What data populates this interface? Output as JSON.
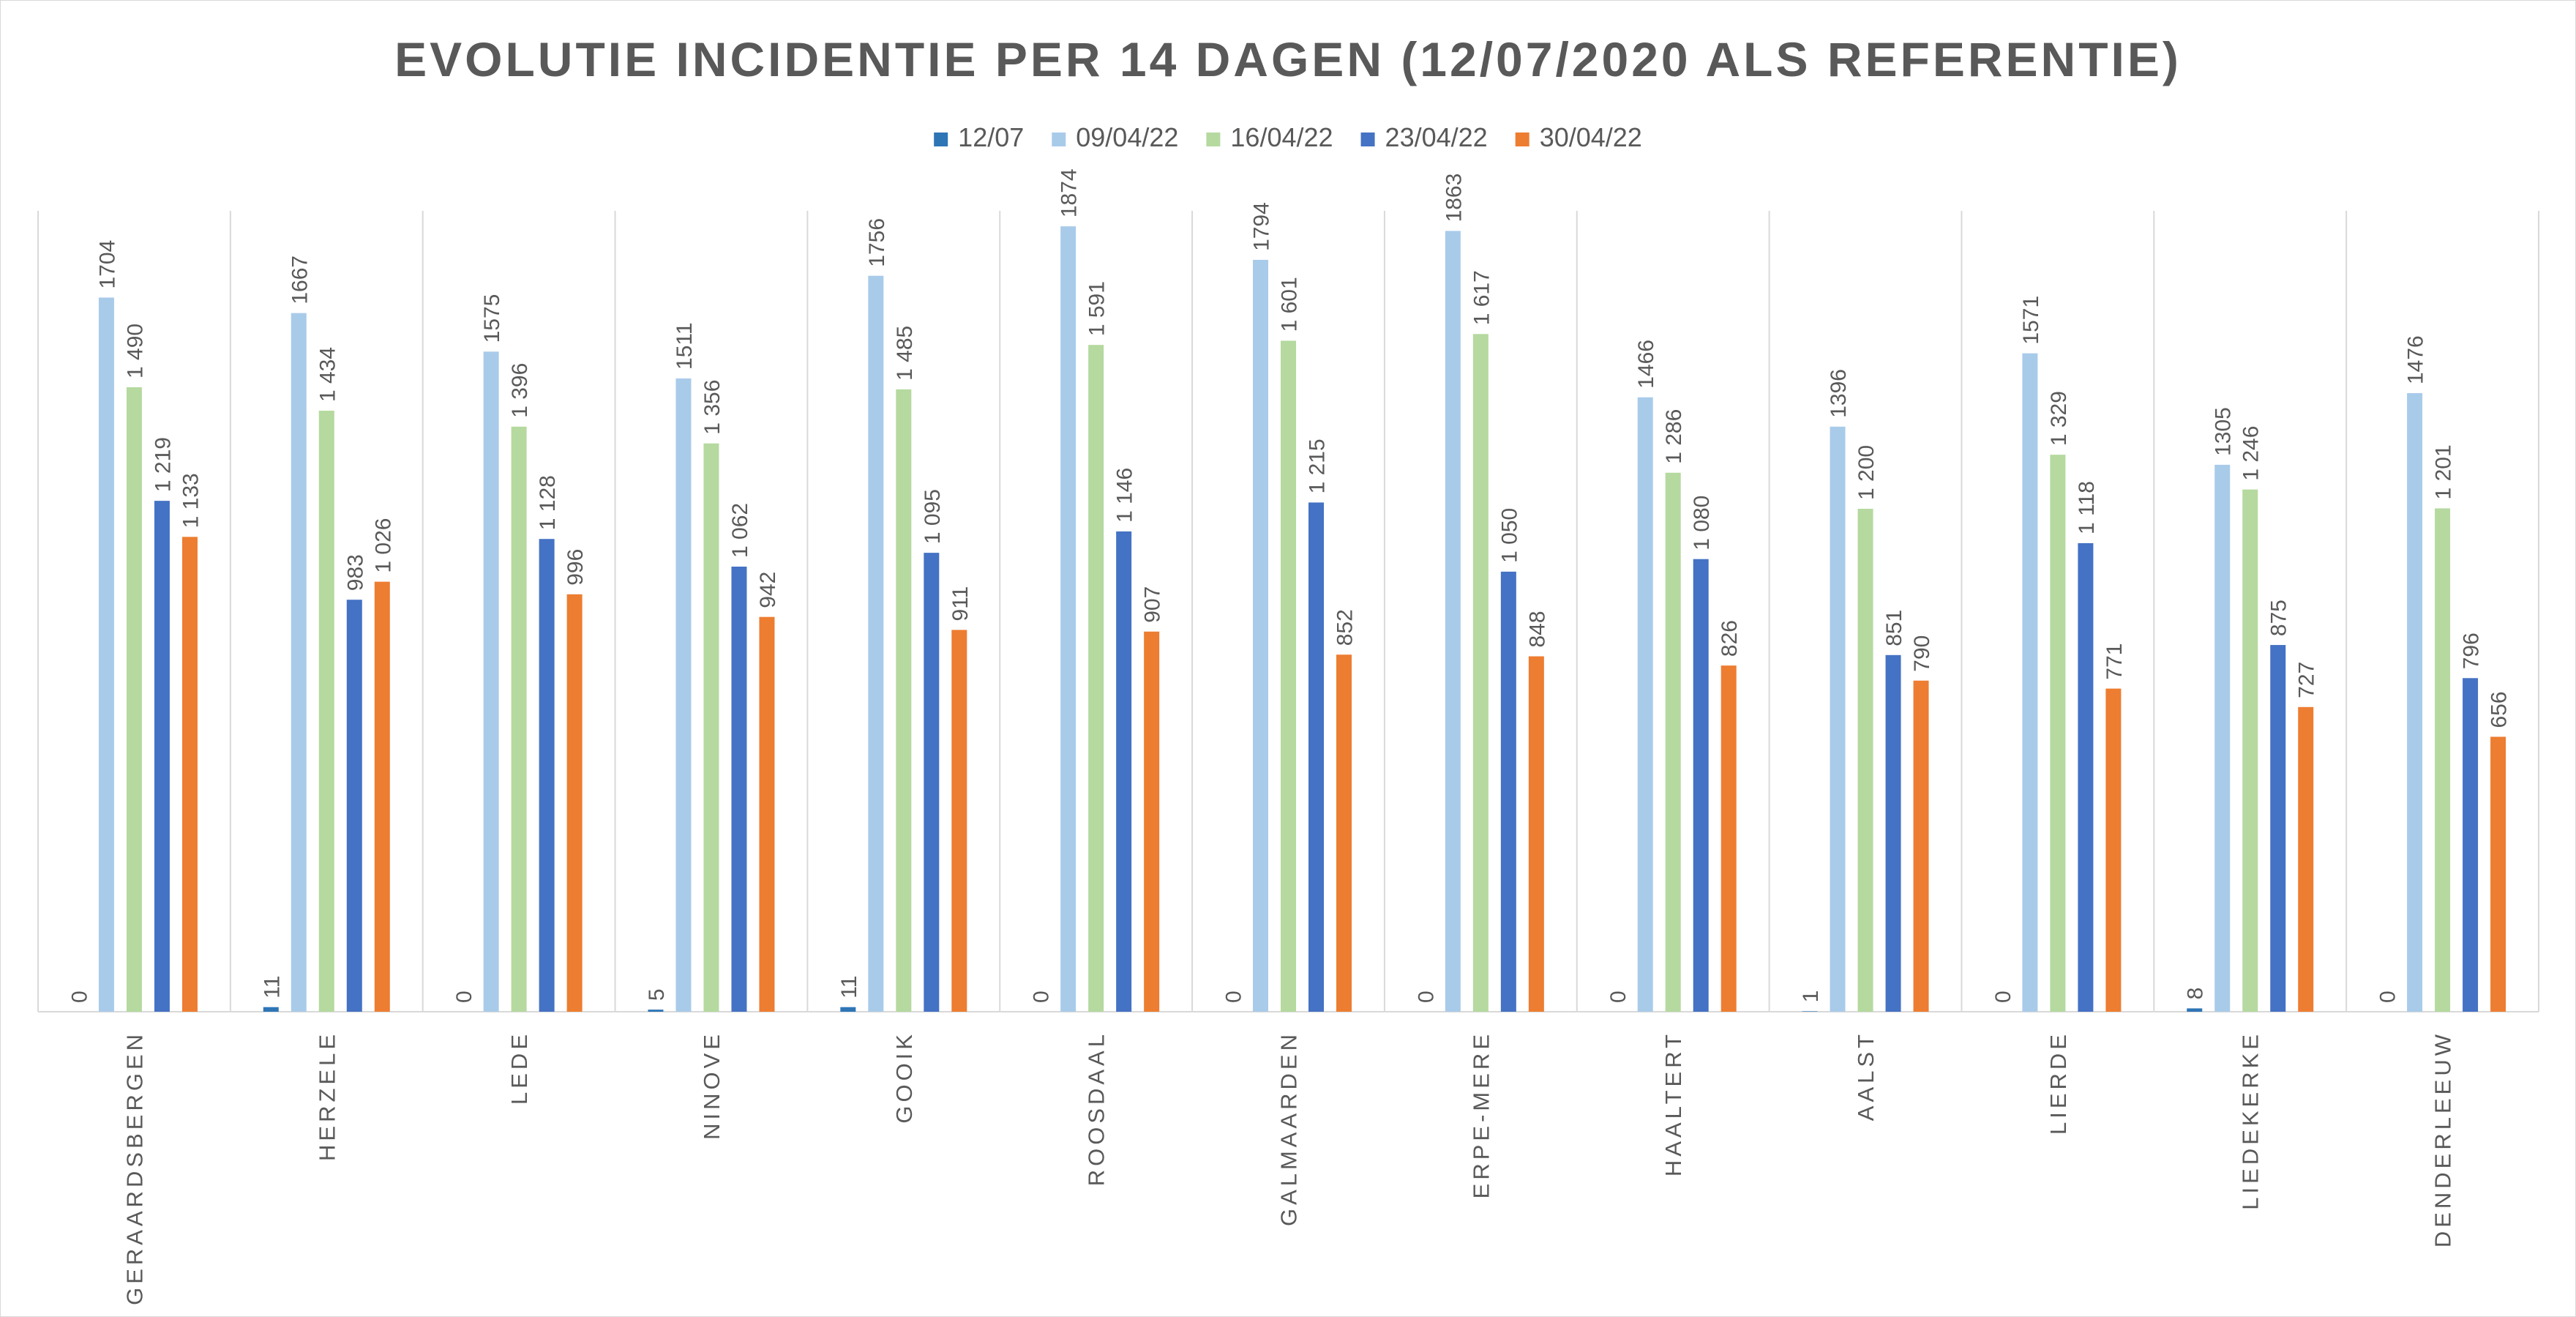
{
  "chart_data": {
    "type": "bar",
    "title": "EVOLUTIE INCIDENTIE PER 14 DAGEN (12/07/2020 ALS REFERENTIE)",
    "xlabel": "",
    "ylabel": "",
    "ylim": [
      0,
      2000
    ],
    "grid": false,
    "legend_position": "top",
    "categories": [
      "GERAARDSBERGEN",
      "HERZELE",
      "LEDE",
      "NINOVE",
      "GOOIK",
      "ROOSDAAL",
      "GALMAARDEN",
      "ERPE-MERE",
      "HAALTERT",
      "AALST",
      "LIERDE",
      "LIEDEKERKE",
      "DENDERLEEUW"
    ],
    "series": [
      {
        "name": "12/07",
        "color": "#2e75b6",
        "values": [
          0,
          11,
          0,
          5,
          11,
          0,
          0,
          0,
          0,
          1,
          0,
          8,
          0
        ],
        "labels": [
          "0",
          "11",
          "0",
          "5",
          "11",
          "0",
          "0",
          "0",
          "0",
          "1",
          "0",
          "8",
          "0"
        ]
      },
      {
        "name": "09/04/22",
        "color": "#a9cbea",
        "values": [
          1704,
          1667,
          1575,
          1511,
          1756,
          1874,
          1794,
          1863,
          1466,
          1396,
          1571,
          1305,
          1476
        ],
        "labels": [
          "1704",
          "1667",
          "1575",
          "1511",
          "1756",
          "1874",
          "1794",
          "1863",
          "1466",
          "1396",
          "1571",
          "1305",
          "1476"
        ]
      },
      {
        "name": "16/04/22",
        "color": "#b5d99f",
        "values": [
          1490,
          1434,
          1396,
          1356,
          1485,
          1591,
          1601,
          1617,
          1286,
          1200,
          1329,
          1246,
          1201
        ],
        "labels": [
          "1 490",
          "1 434",
          "1 396",
          "1 356",
          "1 485",
          "1 591",
          "1 601",
          "1 617",
          "1 286",
          "1 200",
          "1 329",
          "1 246",
          "1 201"
        ]
      },
      {
        "name": "23/04/22",
        "color": "#4472c4",
        "values": [
          1219,
          983,
          1128,
          1062,
          1095,
          1146,
          1215,
          1050,
          1080,
          851,
          1118,
          875,
          796
        ],
        "labels": [
          "1 219",
          "983",
          "1 128",
          "1 062",
          "1 095",
          "1 146",
          "1 215",
          "1 050",
          "1 080",
          "851",
          "1 118",
          "875",
          "796"
        ]
      },
      {
        "name": "30/04/22",
        "color": "#ed7d31",
        "values": [
          1133,
          1026,
          996,
          942,
          911,
          907,
          852,
          848,
          826,
          790,
          771,
          727,
          656
        ],
        "labels": [
          "1 133",
          "1 026",
          "996",
          "942",
          "911",
          "907",
          "852",
          "848",
          "826",
          "790",
          "771",
          "727",
          "656"
        ]
      }
    ]
  }
}
